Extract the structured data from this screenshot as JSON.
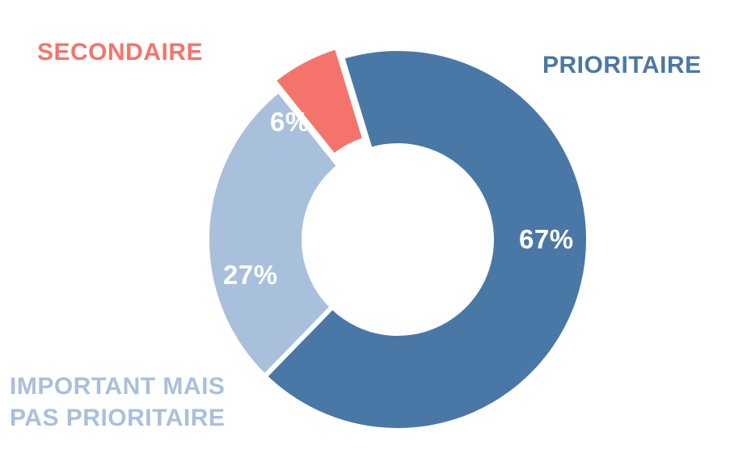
{
  "chart_data": {
    "type": "pie",
    "subtype": "donut",
    "title": "",
    "categories": [
      "PRIORITAIRE",
      "IMPORTANT MAIS PAS PRIORITAIRE",
      "SECONDAIRE"
    ],
    "values": [
      67,
      27,
      6
    ],
    "segments": [
      {
        "label": "PRIORITAIRE",
        "value": 67,
        "display": "67%",
        "color": "#4A78A6",
        "exploded": false
      },
      {
        "label": "IMPORTANT MAIS PAS PRIORITAIRE",
        "value": 27,
        "display": "27%",
        "color": "#A8C0DB",
        "exploded": false
      },
      {
        "label": "SECONDAIRE",
        "value": 6,
        "display": "6%",
        "color": "#F4746B",
        "exploded": true
      }
    ],
    "data_label_color": "#FFFFFF",
    "background": "#FFFFFF",
    "legend": "none",
    "layout": {
      "start_angle_deg": -17,
      "clockwise": true,
      "donut_hole_ratio": 0.49,
      "slice_gap_color": "#FFFFFF",
      "exploded_segment": "SECONDAIRE"
    }
  }
}
